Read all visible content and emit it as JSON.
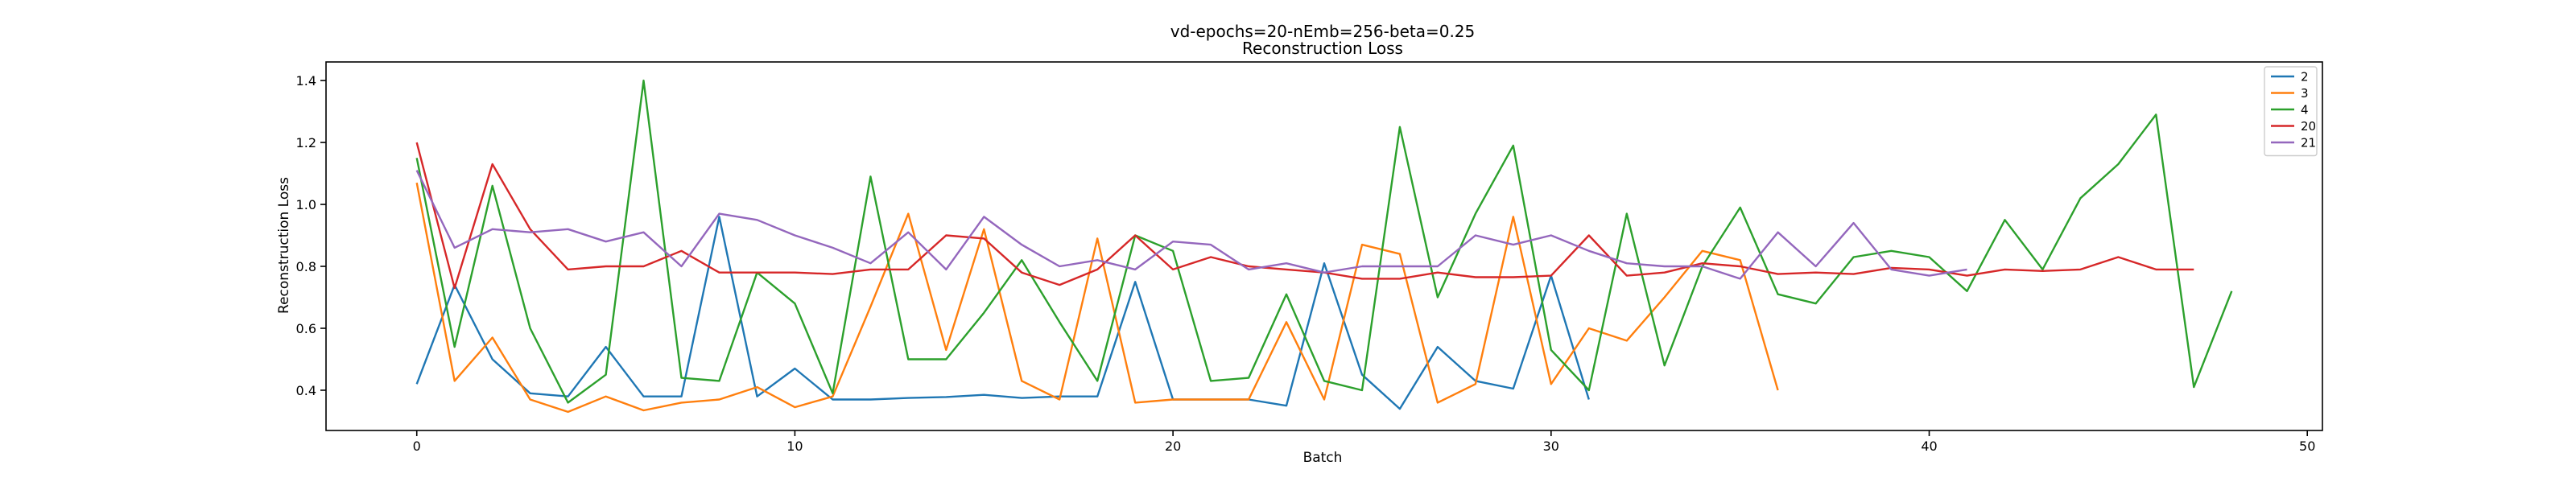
{
  "chart_data": {
    "type": "line",
    "title": "vd-epochs=20-nEmb=256-beta=0.25",
    "subtitle": "Reconstruction Loss",
    "xlabel": "Batch",
    "ylabel": "Reconstruction Loss",
    "xlim": [
      -2.4,
      50.4
    ],
    "ylim": [
      0.27,
      1.46
    ],
    "xticks": [
      0,
      10,
      20,
      30,
      40,
      50
    ],
    "yticks": [
      0.4,
      0.6,
      0.8,
      1.0,
      1.2,
      1.4
    ],
    "xtick_labels": [
      "0",
      "10",
      "20",
      "30",
      "40",
      "50"
    ],
    "ytick_labels": [
      "0.4",
      "0.6",
      "0.8",
      "1.0",
      "1.2",
      "1.4"
    ],
    "grid": false,
    "legend_position": "top-right",
    "series": [
      {
        "name": "2",
        "color": "#1f77b4",
        "x": [
          0,
          1,
          2,
          3,
          4,
          5,
          6,
          7,
          8,
          9,
          10,
          11,
          12,
          13,
          14,
          15,
          16,
          17,
          18,
          19,
          20,
          21,
          22,
          23,
          24,
          25,
          26,
          27,
          28,
          29,
          30,
          31
        ],
        "y": [
          0.42,
          0.74,
          0.5,
          0.39,
          0.38,
          0.54,
          0.38,
          0.38,
          0.96,
          0.38,
          0.47,
          0.37,
          0.37,
          0.375,
          0.378,
          0.385,
          0.375,
          0.38,
          0.38,
          0.75,
          0.37,
          0.37,
          0.37,
          0.35,
          0.81,
          0.45,
          0.34,
          0.54,
          0.43,
          0.405,
          0.77,
          0.37
        ]
      },
      {
        "name": "3",
        "color": "#ff7f0e",
        "x": [
          0,
          1,
          2,
          3,
          4,
          5,
          6,
          7,
          8,
          9,
          10,
          11,
          12,
          13,
          14,
          15,
          16,
          17,
          18,
          19,
          20,
          21,
          22,
          23,
          24,
          25,
          26,
          27,
          28,
          29,
          30,
          31,
          32,
          33,
          34,
          35,
          36
        ],
        "y": [
          1.07,
          0.43,
          0.57,
          0.37,
          0.33,
          0.38,
          0.335,
          0.36,
          0.37,
          0.41,
          0.345,
          0.38,
          0.67,
          0.97,
          0.53,
          0.92,
          0.43,
          0.37,
          0.89,
          0.36,
          0.37,
          0.37,
          0.37,
          0.62,
          0.37,
          0.87,
          0.84,
          0.36,
          0.42,
          0.96,
          0.42,
          0.6,
          0.56,
          0.7,
          0.85,
          0.82,
          0.4
        ]
      },
      {
        "name": "4",
        "color": "#2ca02c",
        "x": [
          0,
          1,
          2,
          3,
          4,
          5,
          6,
          7,
          8,
          9,
          10,
          11,
          12,
          13,
          14,
          15,
          16,
          17,
          18,
          19,
          20,
          21,
          22,
          23,
          24,
          25,
          26,
          27,
          28,
          29,
          30,
          31,
          32,
          33,
          34,
          35,
          36,
          37,
          38,
          39,
          40,
          41,
          42,
          43,
          44,
          45,
          46,
          47,
          48
        ],
        "y": [
          1.15,
          0.54,
          1.06,
          0.6,
          0.36,
          0.45,
          1.4,
          0.44,
          0.43,
          0.78,
          0.68,
          0.39,
          1.09,
          0.5,
          0.5,
          0.65,
          0.82,
          0.62,
          0.43,
          0.9,
          0.85,
          0.43,
          0.44,
          0.71,
          0.43,
          0.4,
          1.25,
          0.7,
          0.97,
          1.19,
          0.53,
          0.4,
          0.97,
          0.48,
          0.8,
          0.99,
          0.71,
          0.68,
          0.83,
          0.85,
          0.83,
          0.72,
          0.95,
          0.79,
          1.02,
          1.13,
          1.29,
          0.41,
          0.72
        ]
      },
      {
        "name": "20",
        "color": "#d62728",
        "x": [
          0,
          1,
          2,
          3,
          4,
          5,
          6,
          7,
          8,
          9,
          10,
          11,
          12,
          13,
          14,
          15,
          16,
          17,
          18,
          19,
          20,
          21,
          22,
          23,
          24,
          25,
          26,
          27,
          28,
          29,
          30,
          31,
          32,
          33,
          34,
          35,
          36,
          37,
          38,
          39,
          40,
          41,
          42,
          43,
          44,
          45,
          46,
          47
        ],
        "y": [
          1.2,
          0.73,
          1.13,
          0.92,
          0.79,
          0.8,
          0.8,
          0.85,
          0.78,
          0.78,
          0.78,
          0.775,
          0.79,
          0.79,
          0.9,
          0.89,
          0.78,
          0.74,
          0.79,
          0.9,
          0.79,
          0.83,
          0.8,
          0.79,
          0.78,
          0.76,
          0.76,
          0.78,
          0.765,
          0.765,
          0.77,
          0.9,
          0.77,
          0.78,
          0.81,
          0.8,
          0.775,
          0.78,
          0.775,
          0.795,
          0.79,
          0.77,
          0.79,
          0.785,
          0.79,
          0.83,
          0.79,
          0.79
        ]
      },
      {
        "name": "21",
        "color": "#9467bd",
        "x": [
          0,
          1,
          2,
          3,
          4,
          5,
          6,
          7,
          8,
          9,
          10,
          11,
          12,
          13,
          14,
          15,
          16,
          17,
          18,
          19,
          20,
          21,
          22,
          23,
          24,
          25,
          26,
          27,
          28,
          29,
          30,
          31,
          32,
          33,
          34,
          35,
          36,
          37,
          38,
          39,
          40,
          41
        ],
        "y": [
          1.11,
          0.86,
          0.92,
          0.91,
          0.92,
          0.88,
          0.91,
          0.8,
          0.97,
          0.95,
          0.9,
          0.86,
          0.81,
          0.91,
          0.79,
          0.96,
          0.87,
          0.8,
          0.82,
          0.79,
          0.88,
          0.87,
          0.79,
          0.81,
          0.78,
          0.8,
          0.8,
          0.8,
          0.9,
          0.87,
          0.9,
          0.85,
          0.81,
          0.8,
          0.8,
          0.76,
          0.91,
          0.8,
          0.94,
          0.79,
          0.77,
          0.79
        ]
      }
    ]
  }
}
